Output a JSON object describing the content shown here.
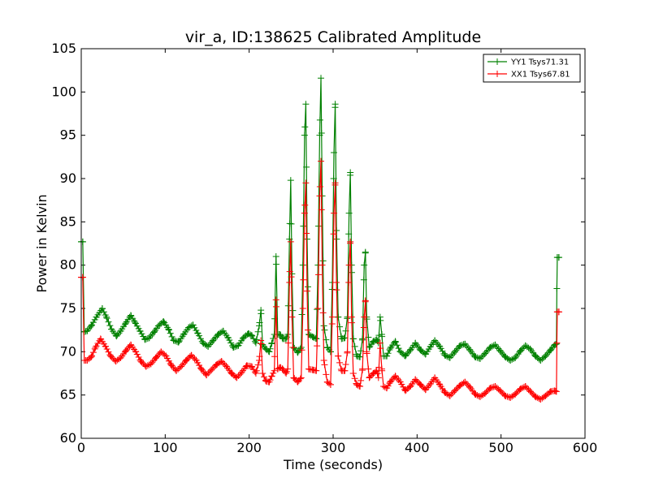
{
  "chart_data": {
    "type": "line",
    "title": "vir_a, ID:138625 Calibrated Amplitude",
    "xlabel": "Time (seconds)",
    "ylabel": "Power in Kelvin",
    "xlim": [
      0,
      600
    ],
    "ylim": [
      60,
      105
    ],
    "xticks": [
      0,
      100,
      200,
      300,
      400,
      500,
      600
    ],
    "yticks": [
      60,
      65,
      70,
      75,
      80,
      85,
      90,
      95,
      100,
      105
    ],
    "grid": false,
    "legend_position": "top-right",
    "marker": "plus",
    "sample_interval": 1.8,
    "series": [
      {
        "name": "YY1 Tsys71.31",
        "color": "#008000",
        "points": [
          [
            0,
            82.7
          ],
          [
            1.8,
            82.7
          ],
          [
            3.6,
            72.3
          ],
          [
            7,
            72.4
          ],
          [
            12,
            73.0
          ],
          [
            18,
            74.0
          ],
          [
            25,
            75.0
          ],
          [
            30,
            74.0
          ],
          [
            36,
            72.6
          ],
          [
            42,
            71.8
          ],
          [
            47,
            72.4
          ],
          [
            53,
            73.3
          ],
          [
            59,
            74.2
          ],
          [
            64,
            73.4
          ],
          [
            70,
            72.4
          ],
          [
            76,
            71.4
          ],
          [
            81,
            71.6
          ],
          [
            87,
            72.3
          ],
          [
            92,
            73.0
          ],
          [
            98,
            73.5
          ],
          [
            104,
            72.6
          ],
          [
            110,
            71.3
          ],
          [
            116,
            71.1
          ],
          [
            122,
            72.0
          ],
          [
            128,
            72.8
          ],
          [
            133,
            73.1
          ],
          [
            139,
            72.1
          ],
          [
            145,
            71.0
          ],
          [
            151,
            70.6
          ],
          [
            157,
            71.3
          ],
          [
            163,
            72.0
          ],
          [
            169,
            72.4
          ],
          [
            175,
            71.6
          ],
          [
            181,
            70.5
          ],
          [
            187,
            70.7
          ],
          [
            193,
            71.6
          ],
          [
            199,
            72.1
          ],
          [
            203,
            71.9
          ],
          [
            208,
            71.0
          ],
          [
            212,
            73.0
          ],
          [
            214,
            74.8
          ],
          [
            216,
            70.8
          ],
          [
            220,
            70.3
          ],
          [
            224,
            70.0
          ],
          [
            227,
            71.0
          ],
          [
            230,
            72.0
          ],
          [
            232,
            81.0
          ],
          [
            234,
            72.0
          ],
          [
            237,
            72.0
          ],
          [
            240,
            71.5
          ],
          [
            244,
            71.5
          ],
          [
            246,
            72.0
          ],
          [
            248,
            83.0
          ],
          [
            249.5,
            89.8
          ],
          [
            251,
            79.0
          ],
          [
            253,
            70.5
          ],
          [
            258,
            69.9
          ],
          [
            262,
            70.5
          ],
          [
            264,
            80.0
          ],
          [
            266,
            95.0
          ],
          [
            267.5,
            98.6
          ],
          [
            269,
            83.0
          ],
          [
            271,
            72.0
          ],
          [
            276,
            71.7
          ],
          [
            280,
            71.5
          ],
          [
            282,
            80.0
          ],
          [
            284,
            95.0
          ],
          [
            285.5,
            101.6
          ],
          [
            287,
            88.0
          ],
          [
            289,
            73.0
          ],
          [
            293,
            70.5
          ],
          [
            297,
            70.0
          ],
          [
            299,
            78.0
          ],
          [
            301,
            93.0
          ],
          [
            302.5,
            98.6
          ],
          [
            304,
            84.0
          ],
          [
            306,
            74.0
          ],
          [
            310,
            71.5
          ],
          [
            314,
            71.6
          ],
          [
            317,
            74.0
          ],
          [
            319,
            86.0
          ],
          [
            320.5,
            90.7
          ],
          [
            322,
            80.0
          ],
          [
            324,
            71.5
          ],
          [
            328,
            69.5
          ],
          [
            332,
            69.4
          ],
          [
            335,
            71.5
          ],
          [
            337,
            80.0
          ],
          [
            338.5,
            81.5
          ],
          [
            340,
            74.0
          ],
          [
            343,
            70.5
          ],
          [
            348,
            71.2
          ],
          [
            352,
            71.4
          ],
          [
            354,
            71.0
          ],
          [
            356,
            74.0
          ],
          [
            358,
            72.0
          ],
          [
            360,
            69.5
          ],
          [
            364,
            69.5
          ],
          [
            368,
            70.4
          ],
          [
            374,
            71.2
          ],
          [
            380,
            70.0
          ],
          [
            386,
            69.5
          ],
          [
            392,
            70.2
          ],
          [
            398,
            71.0
          ],
          [
            404,
            70.2
          ],
          [
            410,
            69.7
          ],
          [
            416,
            70.6
          ],
          [
            421,
            71.3
          ],
          [
            427,
            70.6
          ],
          [
            433,
            69.6
          ],
          [
            439,
            69.3
          ],
          [
            445,
            70.0
          ],
          [
            451,
            70.7
          ],
          [
            457,
            70.9
          ],
          [
            463,
            70.2
          ],
          [
            469,
            69.4
          ],
          [
            475,
            69.2
          ],
          [
            481,
            69.8
          ],
          [
            487,
            70.5
          ],
          [
            493,
            70.8
          ],
          [
            499,
            70.1
          ],
          [
            505,
            69.4
          ],
          [
            511,
            69.0
          ],
          [
            517,
            69.3
          ],
          [
            523,
            70.1
          ],
          [
            529,
            70.7
          ],
          [
            535,
            70.3
          ],
          [
            541,
            69.5
          ],
          [
            547,
            69.0
          ],
          [
            553,
            69.5
          ],
          [
            559,
            70.2
          ],
          [
            564,
            70.8
          ],
          [
            566,
            70.9
          ],
          [
            566.5,
            77.3
          ],
          [
            567,
            80.9
          ],
          [
            569,
            80.9
          ]
        ]
      },
      {
        "name": "XX1 Tsys67.81",
        "color": "#ff0000",
        "points": [
          [
            0,
            78.6
          ],
          [
            1.8,
            78.6
          ],
          [
            3.6,
            69.0
          ],
          [
            7,
            69.0
          ],
          [
            12,
            69.4
          ],
          [
            17,
            70.5
          ],
          [
            23,
            71.5
          ],
          [
            29,
            70.6
          ],
          [
            35,
            69.5
          ],
          [
            41,
            68.9
          ],
          [
            47,
            69.3
          ],
          [
            53,
            70.1
          ],
          [
            59,
            70.8
          ],
          [
            65,
            70.0
          ],
          [
            71,
            68.9
          ],
          [
            77,
            68.3
          ],
          [
            83,
            68.6
          ],
          [
            89,
            69.3
          ],
          [
            95,
            70.0
          ],
          [
            101,
            69.5
          ],
          [
            107,
            68.5
          ],
          [
            113,
            67.8
          ],
          [
            119,
            68.3
          ],
          [
            125,
            69.0
          ],
          [
            131,
            69.6
          ],
          [
            137,
            69.0
          ],
          [
            143,
            68.0
          ],
          [
            149,
            67.3
          ],
          [
            155,
            67.9
          ],
          [
            161,
            68.5
          ],
          [
            167,
            68.9
          ],
          [
            173,
            68.3
          ],
          [
            179,
            67.5
          ],
          [
            185,
            67.0
          ],
          [
            191,
            67.6
          ],
          [
            197,
            68.4
          ],
          [
            203,
            68.3
          ],
          [
            208,
            67.5
          ],
          [
            212,
            69.0
          ],
          [
            214,
            71.3
          ],
          [
            216,
            67.5
          ],
          [
            220,
            66.6
          ],
          [
            224,
            66.5
          ],
          [
            227,
            67.2
          ],
          [
            230,
            67.8
          ],
          [
            232,
            76.0
          ],
          [
            234,
            68.0
          ],
          [
            237,
            68.2
          ],
          [
            240,
            68.0
          ],
          [
            244,
            67.5
          ],
          [
            246,
            68.0
          ],
          [
            248,
            78.0
          ],
          [
            249.5,
            82.7
          ],
          [
            251,
            74.0
          ],
          [
            253,
            67.0
          ],
          [
            258,
            66.5
          ],
          [
            262,
            67.0
          ],
          [
            264,
            75.0
          ],
          [
            266,
            86.0
          ],
          [
            267.5,
            89.5
          ],
          [
            269,
            77.0
          ],
          [
            271,
            68.0
          ],
          [
            276,
            67.9
          ],
          [
            280,
            67.8
          ],
          [
            282,
            75.0
          ],
          [
            284,
            88.0
          ],
          [
            285.5,
            92.0
          ],
          [
            287,
            80.0
          ],
          [
            289,
            69.0
          ],
          [
            293,
            66.5
          ],
          [
            297,
            66.2
          ],
          [
            299,
            74.0
          ],
          [
            301,
            86.0
          ],
          [
            302.5,
            89.5
          ],
          [
            304,
            78.0
          ],
          [
            306,
            69.5
          ],
          [
            310,
            67.8
          ],
          [
            314,
            67.8
          ],
          [
            317,
            70.0
          ],
          [
            319,
            80.0
          ],
          [
            320.5,
            82.7
          ],
          [
            322,
            74.0
          ],
          [
            324,
            67.5
          ],
          [
            328,
            66.2
          ],
          [
            332,
            66.0
          ],
          [
            335,
            68.0
          ],
          [
            337,
            74.0
          ],
          [
            338.5,
            75.9
          ],
          [
            340,
            70.0
          ],
          [
            343,
            67.0
          ],
          [
            348,
            67.5
          ],
          [
            352,
            67.8
          ],
          [
            354,
            67.0
          ],
          [
            356,
            71.0
          ],
          [
            358,
            68.0
          ],
          [
            360,
            66.0
          ],
          [
            364,
            65.8
          ],
          [
            368,
            66.5
          ],
          [
            374,
            67.2
          ],
          [
            380,
            66.5
          ],
          [
            386,
            65.5
          ],
          [
            392,
            66.0
          ],
          [
            398,
            66.8
          ],
          [
            404,
            66.2
          ],
          [
            410,
            65.6
          ],
          [
            416,
            66.3
          ],
          [
            421,
            67.0
          ],
          [
            427,
            66.2
          ],
          [
            433,
            65.3
          ],
          [
            439,
            64.9
          ],
          [
            445,
            65.5
          ],
          [
            451,
            66.1
          ],
          [
            457,
            66.5
          ],
          [
            463,
            65.9
          ],
          [
            469,
            65.1
          ],
          [
            475,
            64.8
          ],
          [
            481,
            65.2
          ],
          [
            487,
            65.8
          ],
          [
            493,
            66.0
          ],
          [
            499,
            65.5
          ],
          [
            505,
            64.9
          ],
          [
            511,
            64.7
          ],
          [
            517,
            65.1
          ],
          [
            523,
            65.7
          ],
          [
            529,
            66.0
          ],
          [
            535,
            65.4
          ],
          [
            541,
            64.8
          ],
          [
            547,
            64.5
          ],
          [
            553,
            64.9
          ],
          [
            559,
            65.4
          ],
          [
            564,
            65.5
          ],
          [
            566,
            65.4
          ],
          [
            566.5,
            71.0
          ],
          [
            567,
            74.6
          ],
          [
            569,
            74.6
          ]
        ]
      }
    ]
  }
}
